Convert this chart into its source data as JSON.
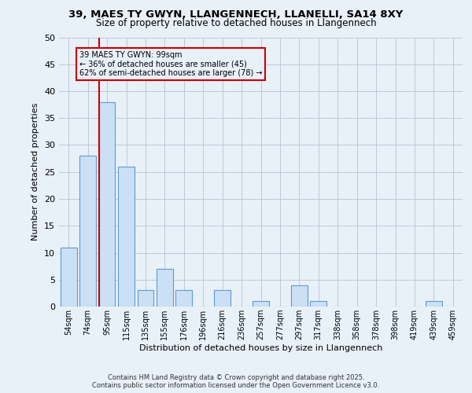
{
  "title1": "39, MAES TY GWYN, LLANGENNECH, LLANELLI, SA14 8XY",
  "title2": "Size of property relative to detached houses in Llangennech",
  "xlabel": "Distribution of detached houses by size in Llangennech",
  "ylabel": "Number of detached properties",
  "bins": [
    "54sqm",
    "74sqm",
    "95sqm",
    "115sqm",
    "135sqm",
    "155sqm",
    "176sqm",
    "196sqm",
    "216sqm",
    "236sqm",
    "257sqm",
    "277sqm",
    "297sqm",
    "317sqm",
    "338sqm",
    "358sqm",
    "378sqm",
    "398sqm",
    "419sqm",
    "439sqm",
    "459sqm"
  ],
  "bar_values": [
    11,
    28,
    38,
    26,
    3,
    7,
    3,
    0,
    3,
    0,
    1,
    0,
    4,
    1,
    0,
    0,
    0,
    0,
    0,
    1,
    0
  ],
  "bar_color": "#cce0f5",
  "bar_edgecolor": "#5b9bd5",
  "vline_color": "#cc0000",
  "vline_bin_index": 2,
  "annotation_line1": "39 MAES TY GWYN: 99sqm",
  "annotation_line2": "← 36% of detached houses are smaller (45)",
  "annotation_line3": "62% of semi-detached houses are larger (78) →",
  "annotation_box_edgecolor": "#cc0000",
  "ylim": [
    0,
    50
  ],
  "yticks": [
    0,
    5,
    10,
    15,
    20,
    25,
    30,
    35,
    40,
    45,
    50
  ],
  "footer_line1": "Contains HM Land Registry data © Crown copyright and database right 2025.",
  "footer_line2": "Contains public sector information licensed under the Open Government Licence v3.0.",
  "bg_color": "#e8f0f8",
  "plot_bg_color": "#e8f0f8"
}
